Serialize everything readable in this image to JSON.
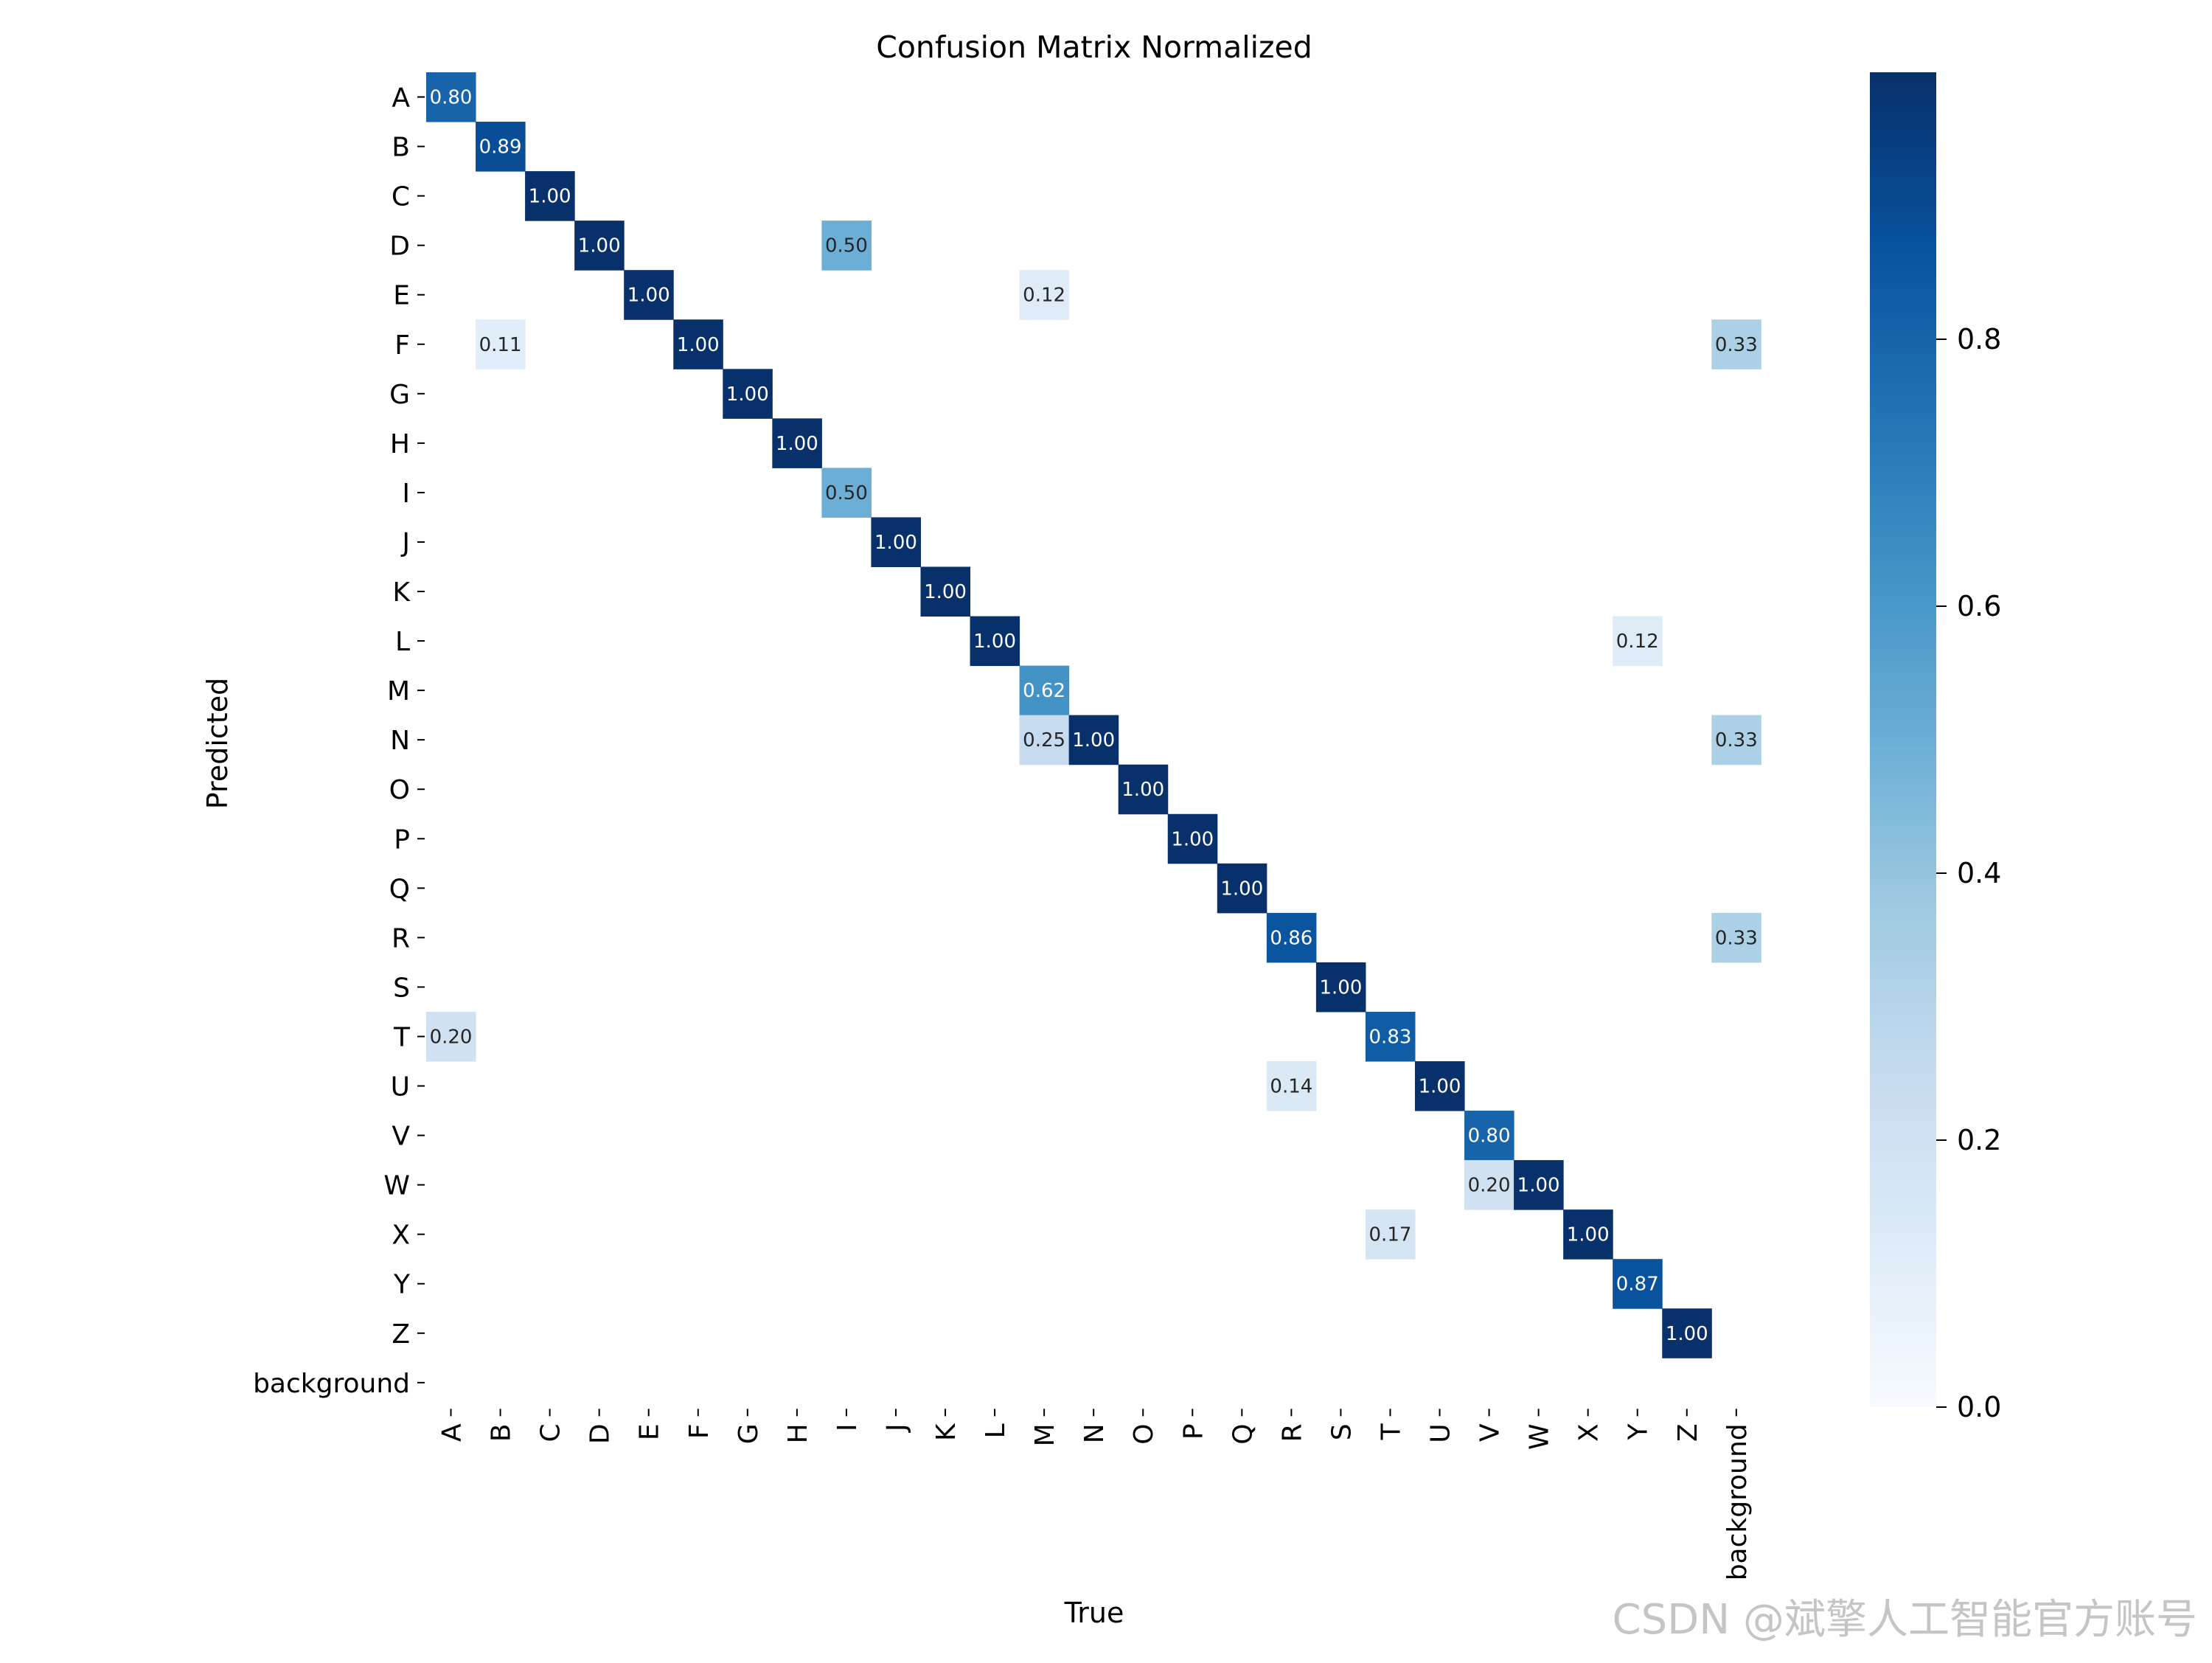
{
  "watermark": "CSDN @斌擎人工智能官方账号",
  "chart_data": {
    "type": "heatmap",
    "title": "Confusion Matrix Normalized",
    "xlabel": "True",
    "ylabel": "Predicted",
    "x_categories": [
      "A",
      "B",
      "C",
      "D",
      "E",
      "F",
      "G",
      "H",
      "I",
      "J",
      "K",
      "L",
      "M",
      "N",
      "O",
      "P",
      "Q",
      "R",
      "S",
      "T",
      "U",
      "V",
      "W",
      "X",
      "Y",
      "Z",
      "background"
    ],
    "y_categories": [
      "A",
      "B",
      "C",
      "D",
      "E",
      "F",
      "G",
      "H",
      "I",
      "J",
      "K",
      "L",
      "M",
      "N",
      "O",
      "P",
      "Q",
      "R",
      "S",
      "T",
      "U",
      "V",
      "W",
      "X",
      "Y",
      "Z",
      "background"
    ],
    "colormap": "Blues",
    "value_range": [
      0,
      1
    ],
    "colorbar_ticks": [
      0.0,
      0.2,
      0.4,
      0.6,
      0.8
    ],
    "colorbar_tick_labels": [
      "0.0",
      "0.2",
      "0.4",
      "0.6",
      "0.8"
    ],
    "cells": [
      {
        "pred": "A",
        "true": "A",
        "value": 0.8,
        "label": "0.80"
      },
      {
        "pred": "B",
        "true": "B",
        "value": 0.89,
        "label": "0.89"
      },
      {
        "pred": "C",
        "true": "C",
        "value": 1.0,
        "label": "1.00"
      },
      {
        "pred": "D",
        "true": "D",
        "value": 1.0,
        "label": "1.00"
      },
      {
        "pred": "D",
        "true": "I",
        "value": 0.5,
        "label": "0.50"
      },
      {
        "pred": "E",
        "true": "E",
        "value": 1.0,
        "label": "1.00"
      },
      {
        "pred": "E",
        "true": "M",
        "value": 0.12,
        "label": "0.12"
      },
      {
        "pred": "F",
        "true": "B",
        "value": 0.11,
        "label": "0.11"
      },
      {
        "pred": "F",
        "true": "F",
        "value": 1.0,
        "label": "1.00"
      },
      {
        "pred": "F",
        "true": "background",
        "value": 0.33,
        "label": "0.33"
      },
      {
        "pred": "G",
        "true": "G",
        "value": 1.0,
        "label": "1.00"
      },
      {
        "pred": "H",
        "true": "H",
        "value": 1.0,
        "label": "1.00"
      },
      {
        "pred": "I",
        "true": "I",
        "value": 0.5,
        "label": "0.50"
      },
      {
        "pred": "J",
        "true": "J",
        "value": 1.0,
        "label": "1.00"
      },
      {
        "pred": "K",
        "true": "K",
        "value": 1.0,
        "label": "1.00"
      },
      {
        "pred": "L",
        "true": "L",
        "value": 1.0,
        "label": "1.00"
      },
      {
        "pred": "L",
        "true": "Y",
        "value": 0.12,
        "label": "0.12"
      },
      {
        "pred": "M",
        "true": "M",
        "value": 0.62,
        "label": "0.62"
      },
      {
        "pred": "N",
        "true": "M",
        "value": 0.25,
        "label": "0.25"
      },
      {
        "pred": "N",
        "true": "N",
        "value": 1.0,
        "label": "1.00"
      },
      {
        "pred": "N",
        "true": "background",
        "value": 0.33,
        "label": "0.33"
      },
      {
        "pred": "O",
        "true": "O",
        "value": 1.0,
        "label": "1.00"
      },
      {
        "pred": "P",
        "true": "P",
        "value": 1.0,
        "label": "1.00"
      },
      {
        "pred": "Q",
        "true": "Q",
        "value": 1.0,
        "label": "1.00"
      },
      {
        "pred": "R",
        "true": "R",
        "value": 0.86,
        "label": "0.86"
      },
      {
        "pred": "R",
        "true": "background",
        "value": 0.33,
        "label": "0.33"
      },
      {
        "pred": "S",
        "true": "S",
        "value": 1.0,
        "label": "1.00"
      },
      {
        "pred": "T",
        "true": "A",
        "value": 0.2,
        "label": "0.20"
      },
      {
        "pred": "T",
        "true": "T",
        "value": 0.83,
        "label": "0.83"
      },
      {
        "pred": "U",
        "true": "R",
        "value": 0.14,
        "label": "0.14"
      },
      {
        "pred": "U",
        "true": "U",
        "value": 1.0,
        "label": "1.00"
      },
      {
        "pred": "V",
        "true": "V",
        "value": 0.8,
        "label": "0.80"
      },
      {
        "pred": "W",
        "true": "V",
        "value": 0.2,
        "label": "0.20"
      },
      {
        "pred": "W",
        "true": "W",
        "value": 1.0,
        "label": "1.00"
      },
      {
        "pred": "X",
        "true": "T",
        "value": 0.17,
        "label": "0.17"
      },
      {
        "pred": "X",
        "true": "X",
        "value": 1.0,
        "label": "1.00"
      },
      {
        "pred": "Y",
        "true": "Y",
        "value": 0.87,
        "label": "0.87"
      },
      {
        "pred": "Z",
        "true": "Z",
        "value": 1.0,
        "label": "1.00"
      }
    ]
  }
}
